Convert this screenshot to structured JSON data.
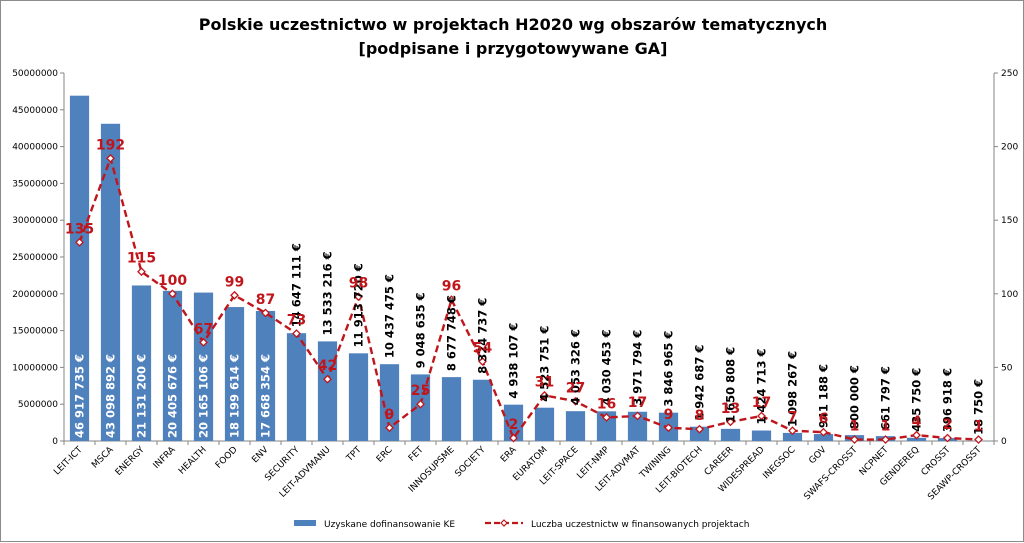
{
  "chart_data": {
    "type": "bar",
    "title": "Polskie uczestnictwo w projektach H2020 wg obszarów tematycznych",
    "subtitle": "[podpisane i przygotowywane GA]",
    "categories": [
      "LEIT-ICT",
      "MSCA",
      "ENERGY",
      "INFRA",
      "HEALTH",
      "FOOD",
      "ENV",
      "SECURITY",
      "LEIT-ADVMANU",
      "TPT",
      "ERC",
      "FET",
      "INNOSUPSME",
      "SOCIETY",
      "ERA",
      "EURATOM",
      "LEIT-SPACE",
      "LEIT-NMP",
      "LEIT-ADVMAT",
      "TWINING",
      "LEIT-BIOTECH",
      "CAREER",
      "WIDESPREAD",
      "INEGSOC",
      "GOV",
      "SWAFS-CROSST",
      "NCPNET",
      "GENDEREQ",
      "CROSST",
      "SEAWP-CROSST"
    ],
    "series": [
      {
        "name": "Uzyskane dofinansowanie KE",
        "axis": "left",
        "color": "#4f81bd",
        "values": [
          46917735,
          43098892,
          21131200,
          20405676,
          20165106,
          18199614,
          17668354,
          14647111,
          13533216,
          11913720,
          10437475,
          9048635,
          8677748,
          8324737,
          4938107,
          4523751,
          4053326,
          4030453,
          3971794,
          3846965,
          1942687,
          1650808,
          1424713,
          1098267,
          941188,
          800000,
          661797,
          435750,
          396918,
          18750
        ],
        "labels": [
          "46 917 735 €",
          "43 098 892 €",
          "21 131 200 €",
          "20 405 676 €",
          "20 165 106 €",
          "18 199 614 €",
          "17 668 354 €",
          "14 647 111 €",
          "13 533 216 €",
          "11 913 720 €",
          "10 437 475 €",
          "9 048 635 €",
          "8 677 748 €",
          "8 324 737 €",
          "4 938 107 €",
          "4 523 751 €",
          "4 053 326 €",
          "4 030 453 €",
          "3 971 794 €",
          "3 846 965 €",
          "1 942 687 €",
          "1 650 808 €",
          "1 424 713 €",
          "1 098 267 €",
          "941 188 €",
          "800 000 €",
          "661 797 €",
          "435 750 €",
          "396 918 €",
          "18 750 €"
        ]
      },
      {
        "name": "Luczba uczestnictw w finansowanych projektach",
        "axis": "right",
        "type": "line",
        "color": "#c0161b",
        "values": [
          135,
          192,
          115,
          100,
          67,
          99,
          87,
          73,
          42,
          98,
          9,
          25,
          96,
          54,
          2,
          31,
          27,
          16,
          17,
          9,
          8,
          13,
          17,
          7,
          6,
          1,
          1,
          4,
          2,
          1
        ]
      }
    ],
    "ylim_left": [
      0,
      50000000
    ],
    "yticks_left": [
      "0",
      "5000000",
      "10000000",
      "15000000",
      "20000000",
      "25000000",
      "30000000",
      "35000000",
      "40000000",
      "45000000",
      "50000000"
    ],
    "ylim_right": [
      0,
      250
    ],
    "yticks_right": [
      "0",
      "50",
      "100",
      "150",
      "200",
      "250"
    ],
    "legend_position": "bottom-center",
    "grid": false
  }
}
